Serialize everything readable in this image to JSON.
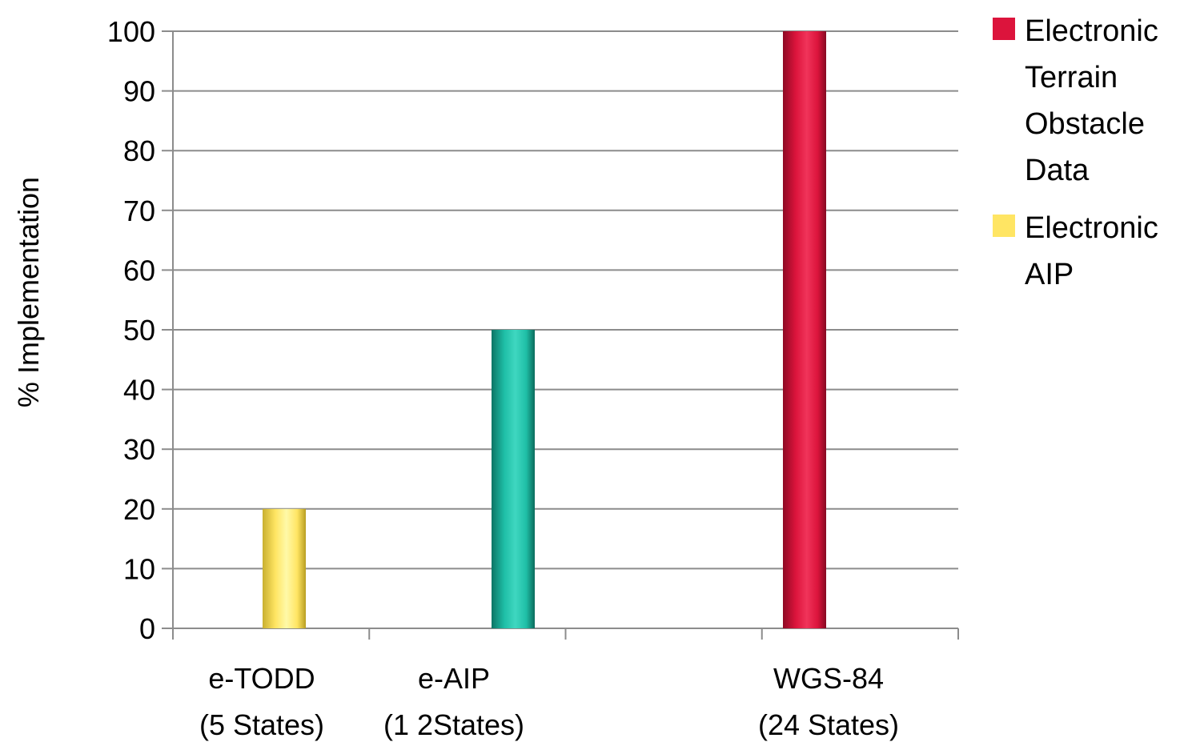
{
  "chart_data": {
    "type": "bar",
    "categories": [
      {
        "line1": "e-TODD",
        "line2": "(5 States)"
      },
      {
        "line1": "e-AIP",
        "line2": "(1 2States)"
      },
      {
        "line1": "",
        "line2": ""
      },
      {
        "line1": "WGS-84",
        "line2": "(24 States)"
      }
    ],
    "bars": [
      {
        "category_index": 0,
        "value": 20,
        "color": "#ffe563"
      },
      {
        "category_index": 1,
        "value": 50,
        "color": "#1fbfa7"
      },
      {
        "category_index": 3,
        "value": 100,
        "color": "#dc143c"
      }
    ],
    "ylabel": "% Implementation",
    "ylim": [
      0,
      100
    ],
    "yticks": [
      0,
      10,
      20,
      30,
      40,
      50,
      60,
      70,
      80,
      90,
      100
    ],
    "grid": true,
    "legend_position": "right",
    "legend": [
      {
        "label": "Electronic Terrain Obstacle Data",
        "color": "#dc143c"
      },
      {
        "label": "Electronic AIP",
        "color": "#ffe563"
      }
    ]
  }
}
